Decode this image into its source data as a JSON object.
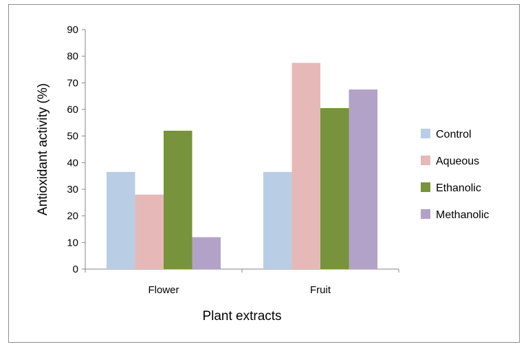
{
  "chart_data": {
    "type": "bar",
    "categories": [
      "Flower",
      "Fruit"
    ],
    "series": [
      {
        "name": "Control",
        "color": "#b9cde5",
        "values": [
          36.5,
          36.5
        ]
      },
      {
        "name": "Aqueous",
        "color": "#e6b9b8",
        "values": [
          28,
          77.5
        ]
      },
      {
        "name": "Ethanolic",
        "color": "#77933c",
        "values": [
          52,
          60.5
        ]
      },
      {
        "name": "Methanolic",
        "color": "#b3a2c7",
        "values": [
          12,
          67.5
        ]
      }
    ],
    "ylim": [
      0,
      90
    ],
    "yticks": [
      0,
      10,
      20,
      30,
      40,
      50,
      60,
      70,
      80,
      90
    ],
    "xlabel": "Plant extracts",
    "ylabel": "Antioxidant activity (%)",
    "legend_position": "right",
    "grid": false
  }
}
